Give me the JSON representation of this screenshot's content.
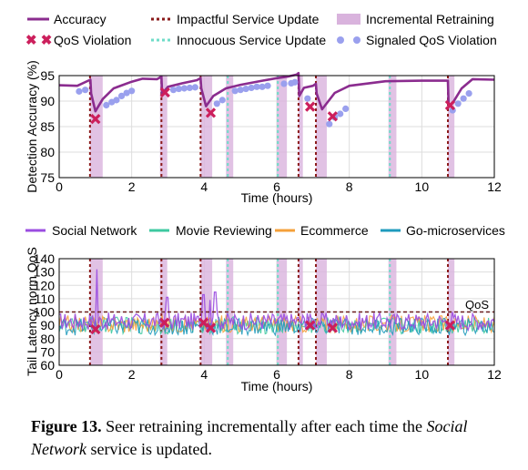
{
  "colors": {
    "accuracy": "#8b2c8f",
    "qos_violation": "#cc1f5c",
    "impactful_update": "#8b1a1a",
    "innocuous_update": "#6fdcc8",
    "retraining": "#d9b3dd",
    "signaled_qos": "#9aa0ee",
    "social_network": "#9b4de0",
    "movie_reviewing": "#3ec9a0",
    "ecommerce": "#f5a03a",
    "go_microservices": "#1f9bbd",
    "qos_line": "#6a1b1b"
  },
  "legend_top": {
    "accuracy": "Accuracy",
    "qos_violation": "QoS Violation",
    "impactful_update": "Impactful Service Update",
    "innocuous_update": "Innocuous Service Update",
    "retraining": "Incremental Retraining",
    "signaled_qos": "Signaled QoS Violation"
  },
  "legend_bottom": {
    "social_network": "Social Network",
    "movie_reviewing": "Movie Reviewing",
    "ecommerce": "Ecommerce",
    "go_microservices": "Go-microservices"
  },
  "caption": {
    "label": "Figure 13.",
    "text_before": " Seer retraining incrementally after each time the ",
    "emph": "Social Network",
    "text_after": " service is updated."
  },
  "chart_data": [
    {
      "type": "line",
      "xlabel": "Time (hours)",
      "ylabel": "Detection Accuracy (%)",
      "xlim": [
        0,
        12
      ],
      "ylim": [
        75,
        95
      ],
      "xticks": [
        0,
        2,
        4,
        6,
        8,
        10,
        12
      ],
      "yticks": [
        75,
        80,
        85,
        90,
        95
      ],
      "grid": true,
      "retraining_windows": [
        [
          0.85,
          1.2
        ],
        [
          2.78,
          2.98
        ],
        [
          3.9,
          4.22
        ],
        [
          4.6,
          4.8
        ],
        [
          6.0,
          6.28
        ],
        [
          6.6,
          6.72
        ],
        [
          7.08,
          7.38
        ],
        [
          9.08,
          9.3
        ],
        [
          10.72,
          10.9
        ]
      ],
      "impactful_updates": [
        0.85,
        2.82,
        3.9,
        6.6,
        7.08,
        10.72
      ],
      "innocuous_updates": [
        4.65,
        6.03,
        9.12
      ],
      "accuracy": {
        "x": [
          0,
          0.5,
          0.86,
          0.88,
          1.0,
          1.2,
          1.5,
          2.0,
          2.3,
          2.7,
          2.82,
          2.84,
          3.0,
          3.4,
          3.8,
          3.9,
          3.92,
          4.05,
          4.25,
          4.6,
          5.0,
          5.6,
          6.0,
          6.3,
          6.55,
          6.6,
          6.62,
          6.75,
          7.0,
          7.08,
          7.1,
          7.25,
          7.6,
          8.0,
          9.0,
          10.0,
          10.72,
          10.74,
          10.85,
          11.1,
          11.4,
          12.0
        ],
        "y": [
          93.1,
          93.0,
          94.2,
          91.5,
          88.0,
          90.4,
          92.5,
          93.8,
          94.4,
          94.3,
          94.8,
          91.5,
          92.8,
          93.5,
          94.1,
          94.5,
          92.5,
          89.0,
          91.0,
          92.5,
          93.2,
          94.0,
          94.5,
          94.8,
          95.2,
          95.5,
          91.0,
          92.6,
          93.0,
          93.4,
          91.5,
          88.4,
          91.6,
          93.0,
          93.9,
          94.0,
          94.0,
          89.0,
          89.6,
          92.5,
          94.3,
          94.2
        ]
      },
      "qos_violations": {
        "x": [
          1.0,
          2.92,
          4.18,
          6.92,
          7.54,
          10.78
        ],
        "y": [
          86.5,
          91.7,
          87.7,
          88.9,
          87.0,
          89.2
        ]
      },
      "signaled_qos": {
        "x": [
          0.55,
          0.72,
          1.3,
          1.45,
          1.58,
          1.72,
          1.86,
          2.0,
          3.15,
          3.3,
          3.45,
          3.6,
          3.75,
          4.35,
          4.5,
          4.85,
          5.0,
          5.15,
          5.3,
          5.45,
          5.6,
          5.75,
          6.2,
          6.4,
          6.5,
          6.85,
          7.45,
          7.6,
          7.75,
          7.9,
          10.85,
          11.0,
          11.15,
          11.3
        ],
        "y": [
          91.9,
          92.2,
          89.2,
          89.8,
          90.2,
          91.0,
          91.6,
          92.0,
          92.2,
          92.4,
          92.5,
          92.6,
          92.7,
          89.5,
          90.2,
          92.0,
          92.2,
          92.4,
          92.6,
          92.8,
          92.8,
          93.0,
          93.4,
          93.5,
          93.7,
          90.5,
          85.5,
          86.8,
          87.5,
          88.5,
          88.2,
          89.5,
          90.5,
          91.5
        ]
      }
    },
    {
      "type": "line",
      "xlabel": "Time (hours)",
      "ylabel": "Tail Latency norm QoS",
      "xlim": [
        0,
        12
      ],
      "ylim": [
        60,
        140
      ],
      "xticks": [
        0,
        2,
        4,
        6,
        8,
        10,
        12
      ],
      "yticks": [
        60,
        70,
        80,
        90,
        100,
        110,
        120,
        130,
        140
      ],
      "grid": true,
      "qos_line": {
        "label": "QoS",
        "y": 100
      },
      "qos_violations": {
        "x": [
          1.0,
          2.9,
          3.98,
          4.18,
          6.92,
          7.54,
          10.78
        ],
        "y": [
          87,
          92,
          92,
          88,
          90,
          88,
          90
        ]
      },
      "series": [
        {
          "name": "Social Network",
          "baseline": 93,
          "spikes": [
            [
              1.05,
              136
            ],
            [
              2.98,
              119
            ],
            [
              3.98,
              121
            ],
            [
              4.15,
              113
            ],
            [
              4.3,
              123
            ],
            [
              6.85,
              103
            ],
            [
              7.3,
              103
            ],
            [
              10.85,
              104
            ]
          ]
        },
        {
          "name": "Movie Reviewing",
          "baseline": 90,
          "spikes": []
        },
        {
          "name": "Ecommerce",
          "baseline": 91,
          "spikes": []
        },
        {
          "name": "Go-microservices",
          "baseline": 89,
          "spikes": []
        }
      ]
    }
  ]
}
